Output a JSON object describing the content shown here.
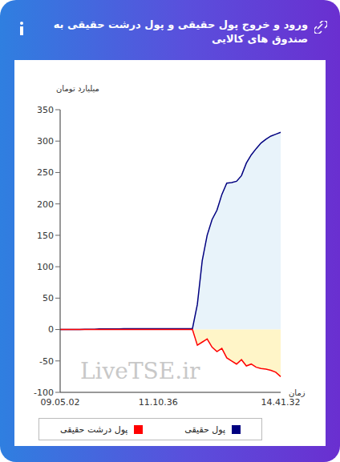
{
  "chart_data": {
    "type": "area",
    "title": "ورود و خروج پول حقیقی و پول درشت حقیقی به صندوق های کالایی",
    "y_label": "میلیارد تومان",
    "x_label": "زمان",
    "annotations": [
      "LiveTSE.ir"
    ],
    "categories": [
      "09.05.02",
      null,
      null,
      null,
      null,
      null,
      null,
      null,
      null,
      null,
      null,
      null,
      null,
      null,
      null,
      null,
      null,
      null,
      null,
      null,
      "11.10.36",
      null,
      null,
      null,
      null,
      null,
      null,
      null,
      null,
      null,
      null,
      null,
      null,
      null,
      null,
      null,
      null,
      null,
      null,
      null,
      null,
      null,
      null,
      null,
      null,
      "14.41.32"
    ],
    "series": [
      {
        "name": "پول حقیقی",
        "color": "#000080",
        "values": [
          0,
          0,
          0,
          0,
          0,
          0.5,
          0.5,
          0.5,
          1,
          1,
          1,
          1,
          1,
          1.5,
          1.5,
          1.5,
          1.5,
          1.5,
          1.5,
          1.5,
          1.5,
          1.5,
          1.5,
          1.5,
          1.5,
          1.5,
          1.5,
          1.5,
          40,
          110,
          150,
          175,
          190,
          215,
          233,
          234,
          236,
          245,
          265,
          278,
          288,
          297,
          303,
          308,
          311,
          314
        ]
      },
      {
        "name": "پول درشت حقیقی",
        "color": "#ff0000",
        "values": [
          0,
          0,
          0,
          0,
          0,
          0,
          0,
          0,
          0,
          0,
          0,
          0,
          0,
          0,
          0,
          0,
          0,
          0,
          0,
          0,
          0,
          0,
          0,
          0,
          0,
          0,
          0,
          0,
          -25,
          -20,
          -15,
          -28,
          -35,
          -30,
          -45,
          -50,
          -55,
          -48,
          -58,
          -55,
          -60,
          -62,
          -63,
          -65,
          -68,
          -75
        ]
      }
    ],
    "ylim": [
      -100,
      350
    ],
    "yticks": [
      -100,
      -50,
      0,
      50,
      100,
      150,
      200,
      250,
      300,
      350
    ],
    "grid": false,
    "legend": "bottom"
  }
}
